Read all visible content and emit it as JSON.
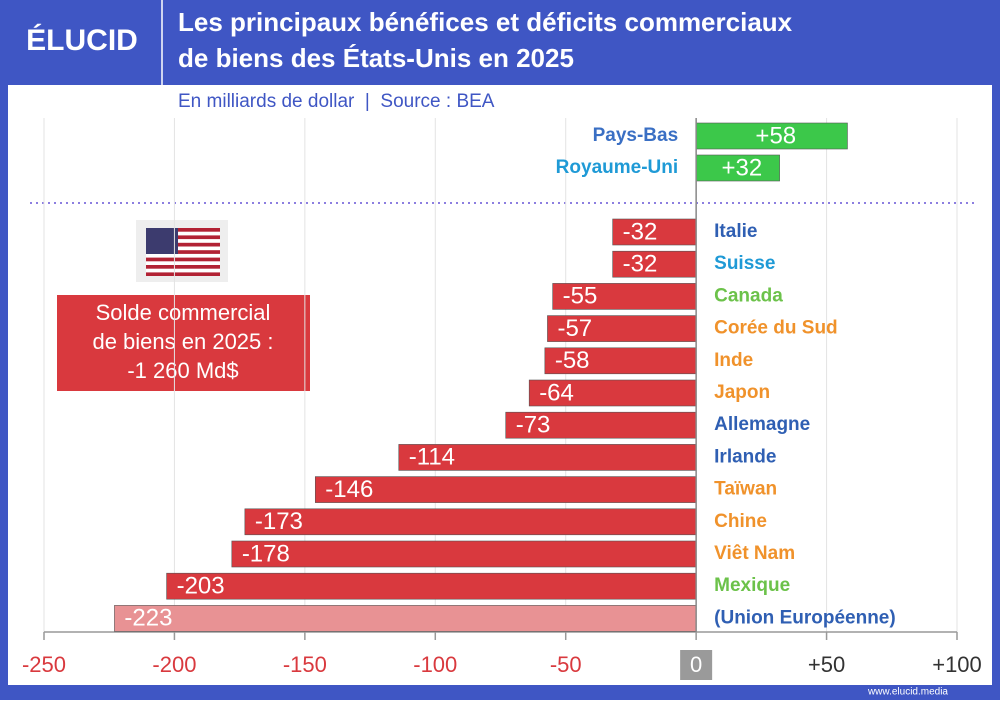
{
  "logo": "ÉLUCID",
  "chart_data": {
    "type": "hbar",
    "title": [
      "Les principaux bénéfices et déficits commerciaux",
      "de biens des États-Unis en 2025"
    ],
    "subtitle": "En milliards de dollar  |  Source : BEA",
    "categories": [
      "Pays-Bas",
      "Royaume-Uni",
      "Italie",
      "Suisse",
      "Canada",
      "Corée du Sud",
      "Inde",
      "Japon",
      "Allemagne",
      "Irlande",
      "Taïwan",
      "Chine",
      "Viêt Nam",
      "Mexique",
      "(Union Européenne)"
    ],
    "values": [
      58,
      32,
      -32,
      -32,
      -55,
      -57,
      -58,
      -64,
      -73,
      -114,
      -146,
      -173,
      -178,
      -203,
      -223
    ],
    "value_labels": [
      "+58",
      "+32",
      "-32",
      "-32",
      "-55",
      "-57",
      "-58",
      "-64",
      "-73",
      "-114",
      "-146",
      "-173",
      "-178",
      "-203",
      "-223"
    ],
    "bar_colors": [
      "#3cc84a",
      "#3cc84a",
      "#d9393e",
      "#d9393e",
      "#d9393e",
      "#d9393e",
      "#d9393e",
      "#d9393e",
      "#d9393e",
      "#d9393e",
      "#d9393e",
      "#d9393e",
      "#d9393e",
      "#d9393e",
      "#e89294"
    ],
    "label_colors": [
      "#3a6fc4",
      "#1f9ad6",
      "#2f5fb3",
      "#1f9ad6",
      "#6cc24a",
      "#f0922b",
      "#f0922b",
      "#f0922b",
      "#2f5fb3",
      "#2f5fb3",
      "#f0922b",
      "#f0922b",
      "#f0922b",
      "#6cc24a",
      "#2f5fb3"
    ],
    "xlim": [
      -250,
      100
    ],
    "xticks": [
      -250,
      -200,
      -150,
      -100,
      -50,
      0,
      {
        "value": 50,
        "label": "+50"
      },
      {
        "value": 100,
        "label": "+100"
      }
    ],
    "grid": true,
    "annotation": [
      "Solde commercial",
      "de biens en 2025 :",
      "-1 260 Md$"
    ]
  },
  "footer": "www.elucid.media"
}
